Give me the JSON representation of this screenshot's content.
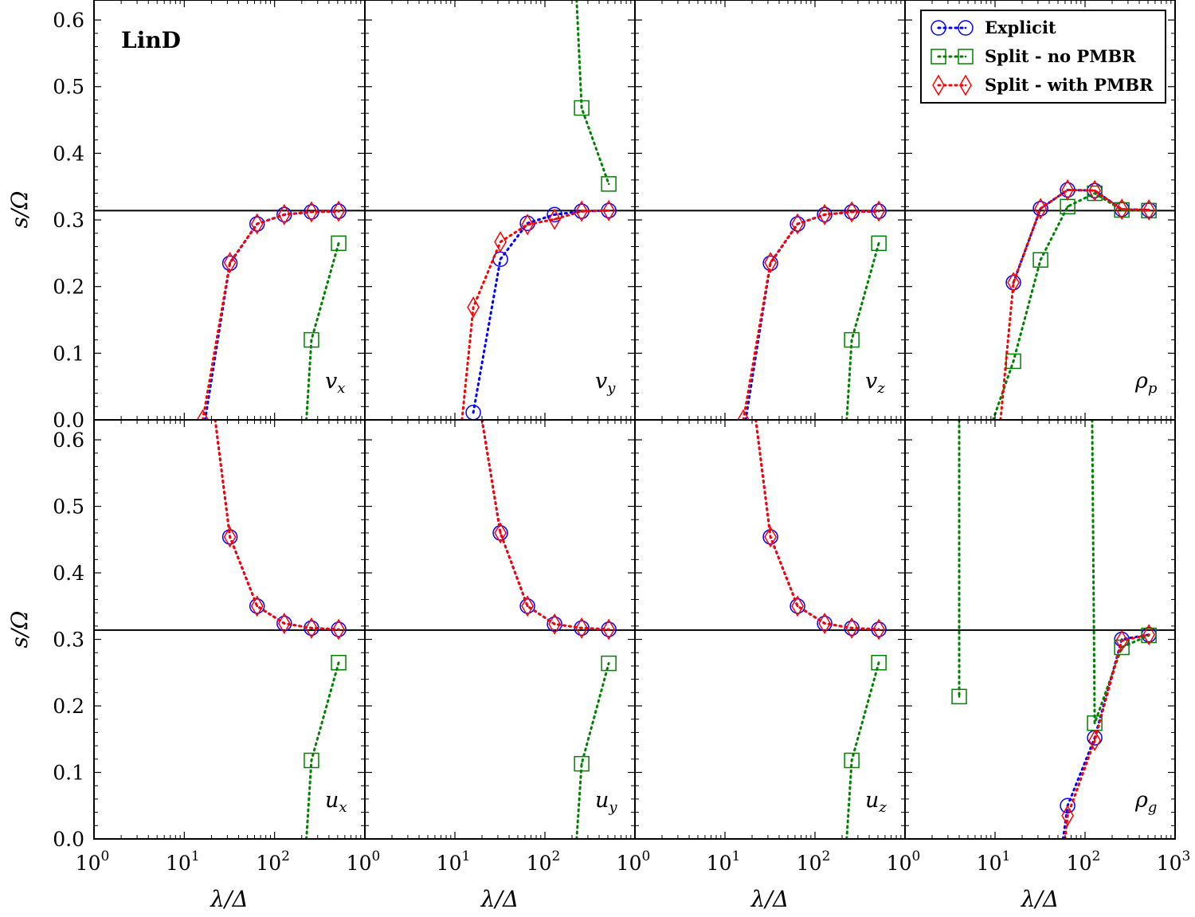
{
  "figure_label": "LinD",
  "chart_data": {
    "type": "line",
    "layout": "2 rows x 4 columns, shared axes",
    "xscale": "log",
    "xlim": [
      1,
      1000
    ],
    "ylim": [
      0.0,
      0.63
    ],
    "xlabel": "λ/Δ",
    "ylabel": "s/Ω",
    "x_tick_labels": [
      "10",
      "10",
      "10",
      "10"
    ],
    "x_tick_exponents": [
      "0",
      "1",
      "2",
      "3"
    ],
    "y_ticks": [
      0.0,
      0.1,
      0.2,
      0.3,
      0.4,
      0.5,
      0.6
    ],
    "y_tick_labels": [
      "0.0",
      "0.1",
      "0.2",
      "0.3",
      "0.4",
      "0.5",
      "0.6"
    ],
    "reference_line_y": 0.314,
    "grid": false,
    "legend_placement": "top-right (in top-right panel)",
    "series_styles": [
      {
        "name": "Explicit",
        "marker": "circle",
        "color": "#0000ff"
      },
      {
        "name": "Split - no PMBR",
        "marker": "square",
        "color": "#008000"
      },
      {
        "name": "Split - with PMBR",
        "marker": "diamond",
        "color": "#ff0000"
      }
    ],
    "panels": [
      {
        "row": 0,
        "col": 0,
        "label": "v",
        "label_sub": "x",
        "series": [
          {
            "name": "Explicit",
            "x": [
              32,
              64,
              128,
              256,
              512
            ],
            "y": [
              0.235,
              0.294,
              0.308,
              0.312,
              0.313
            ],
            "line_start": [
              17,
              0.0
            ]
          },
          {
            "name": "Split - no PMBR",
            "x": [
              256,
              512
            ],
            "y": [
              0.12,
              0.265
            ],
            "line_start": [
              225,
              0.0
            ]
          },
          {
            "name": "Split - with PMBR",
            "x": [
              16,
              32,
              64,
              128,
              256,
              512
            ],
            "y": [
              0.0,
              0.236,
              0.294,
              0.308,
              0.312,
              0.313
            ]
          }
        ]
      },
      {
        "row": 0,
        "col": 1,
        "label": "v",
        "label_sub": "y",
        "series": [
          {
            "name": "Explicit",
            "x": [
              16,
              32,
              64,
              128,
              256,
              512
            ],
            "y": [
              0.011,
              0.241,
              0.295,
              0.308,
              0.313,
              0.314
            ]
          },
          {
            "name": "Split - no PMBR",
            "x": [
              256,
              512
            ],
            "y": [
              0.468,
              0.354
            ],
            "line_start": [
              225,
              0.63
            ]
          },
          {
            "name": "Split - with PMBR",
            "x": [
              16,
              32,
              64,
              128,
              256,
              512
            ],
            "y": [
              0.169,
              0.267,
              0.293,
              0.301,
              0.313,
              0.314
            ],
            "line_start": [
              12,
              0.0
            ]
          }
        ]
      },
      {
        "row": 0,
        "col": 2,
        "label": "v",
        "label_sub": "z",
        "series": [
          {
            "name": "Explicit",
            "x": [
              32,
              64,
              128,
              256,
              512
            ],
            "y": [
              0.235,
              0.294,
              0.308,
              0.312,
              0.313
            ],
            "line_start": [
              17,
              0.0
            ]
          },
          {
            "name": "Split - no PMBR",
            "x": [
              256,
              512
            ],
            "y": [
              0.12,
              0.265
            ],
            "line_start": [
              225,
              0.0
            ]
          },
          {
            "name": "Split - with PMBR",
            "x": [
              16,
              32,
              64,
              128,
              256,
              512
            ],
            "y": [
              0.0,
              0.236,
              0.294,
              0.308,
              0.312,
              0.313
            ]
          }
        ]
      },
      {
        "row": 0,
        "col": 3,
        "label": "ρ",
        "label_sub": "p",
        "series": [
          {
            "name": "Explicit",
            "x": [
              16,
              32,
              64,
              128,
              256,
              512
            ],
            "y": [
              0.206,
              0.317,
              0.345,
              0.344,
              0.316,
              0.315
            ]
          },
          {
            "name": "Split - no PMBR",
            "x": [
              16,
              32,
              64,
              128,
              256,
              512
            ],
            "y": [
              0.088,
              0.24,
              0.32,
              0.34,
              0.315,
              0.314
            ],
            "line_start": [
              9.5,
              0.0
            ]
          },
          {
            "name": "Split - with PMBR",
            "x": [
              16,
              32,
              64,
              128,
              256,
              512
            ],
            "y": [
              0.206,
              0.317,
              0.345,
              0.344,
              0.316,
              0.315
            ],
            "line_start": [
              11.5,
              0.0
            ]
          }
        ]
      },
      {
        "row": 1,
        "col": 0,
        "label": "u",
        "label_sub": "x",
        "series": [
          {
            "name": "Explicit",
            "x": [
              32,
              64,
              128,
              256,
              512
            ],
            "y": [
              0.454,
              0.35,
              0.324,
              0.317,
              0.315
            ],
            "line_start": [
              22,
              0.63
            ]
          },
          {
            "name": "Split - no PMBR",
            "x": [
              256,
              512
            ],
            "y": [
              0.118,
              0.265
            ],
            "line_start": [
              225,
              0.0
            ]
          },
          {
            "name": "Split - with PMBR",
            "x": [
              32,
              64,
              128,
              256,
              512
            ],
            "y": [
              0.454,
              0.35,
              0.324,
              0.317,
              0.315
            ],
            "line_start": [
              22,
              0.63
            ]
          }
        ]
      },
      {
        "row": 1,
        "col": 1,
        "label": "u",
        "label_sub": "y",
        "series": [
          {
            "name": "Explicit",
            "x": [
              32,
              64,
              128,
              256,
              512
            ],
            "y": [
              0.46,
              0.35,
              0.323,
              0.317,
              0.315
            ],
            "line_start": [
              20,
              0.63
            ]
          },
          {
            "name": "Split - no PMBR",
            "x": [
              256,
              512
            ],
            "y": [
              0.113,
              0.264
            ],
            "line_start": [
              225,
              0.0
            ]
          },
          {
            "name": "Split - with PMBR",
            "x": [
              32,
              64,
              128,
              256,
              512
            ],
            "y": [
              0.46,
              0.35,
              0.323,
              0.317,
              0.315
            ],
            "line_start": [
              20,
              0.63
            ]
          }
        ]
      },
      {
        "row": 1,
        "col": 2,
        "label": "u",
        "label_sub": "z",
        "series": [
          {
            "name": "Explicit",
            "x": [
              32,
              64,
              128,
              256,
              512
            ],
            "y": [
              0.454,
              0.35,
              0.324,
              0.317,
              0.315
            ],
            "line_start": [
              22,
              0.63
            ]
          },
          {
            "name": "Split - no PMBR",
            "x": [
              256,
              512
            ],
            "y": [
              0.118,
              0.265
            ],
            "line_start": [
              225,
              0.0
            ]
          },
          {
            "name": "Split - with PMBR",
            "x": [
              32,
              64,
              128,
              256,
              512
            ],
            "y": [
              0.454,
              0.35,
              0.324,
              0.317,
              0.315
            ],
            "line_start": [
              22,
              0.63
            ]
          }
        ]
      },
      {
        "row": 1,
        "col": 3,
        "label": "ρ",
        "label_sub": "g",
        "series": [
          {
            "name": "Explicit",
            "x": [
              64,
              128,
              256,
              512
            ],
            "y": [
              0.05,
              0.152,
              0.3,
              0.307
            ],
            "line_start": [
              57,
              0.0
            ]
          },
          {
            "name": "Split - no PMBR",
            "x": [
              4,
              128,
              256,
              512
            ],
            "y": [
              0.214,
              0.174,
              0.288,
              0.306
            ],
            "line_start": [
              4,
              0.63
            ],
            "segments": [
              [
                [
                  4,
                  0.63
                ],
                [
                  4,
                  0.214
                ]
              ],
              [
                [
                  120,
                  0.63
                ],
                [
                  128,
                  0.174
                ],
                [
                  256,
                  0.288
                ],
                [
                  512,
                  0.306
                ]
              ]
            ]
          },
          {
            "name": "Split - with PMBR",
            "x": [
              64,
              128,
              256,
              512
            ],
            "y": [
              0.035,
              0.148,
              0.298,
              0.307
            ],
            "line_start": [
              60,
              0.0
            ]
          }
        ]
      }
    ]
  }
}
